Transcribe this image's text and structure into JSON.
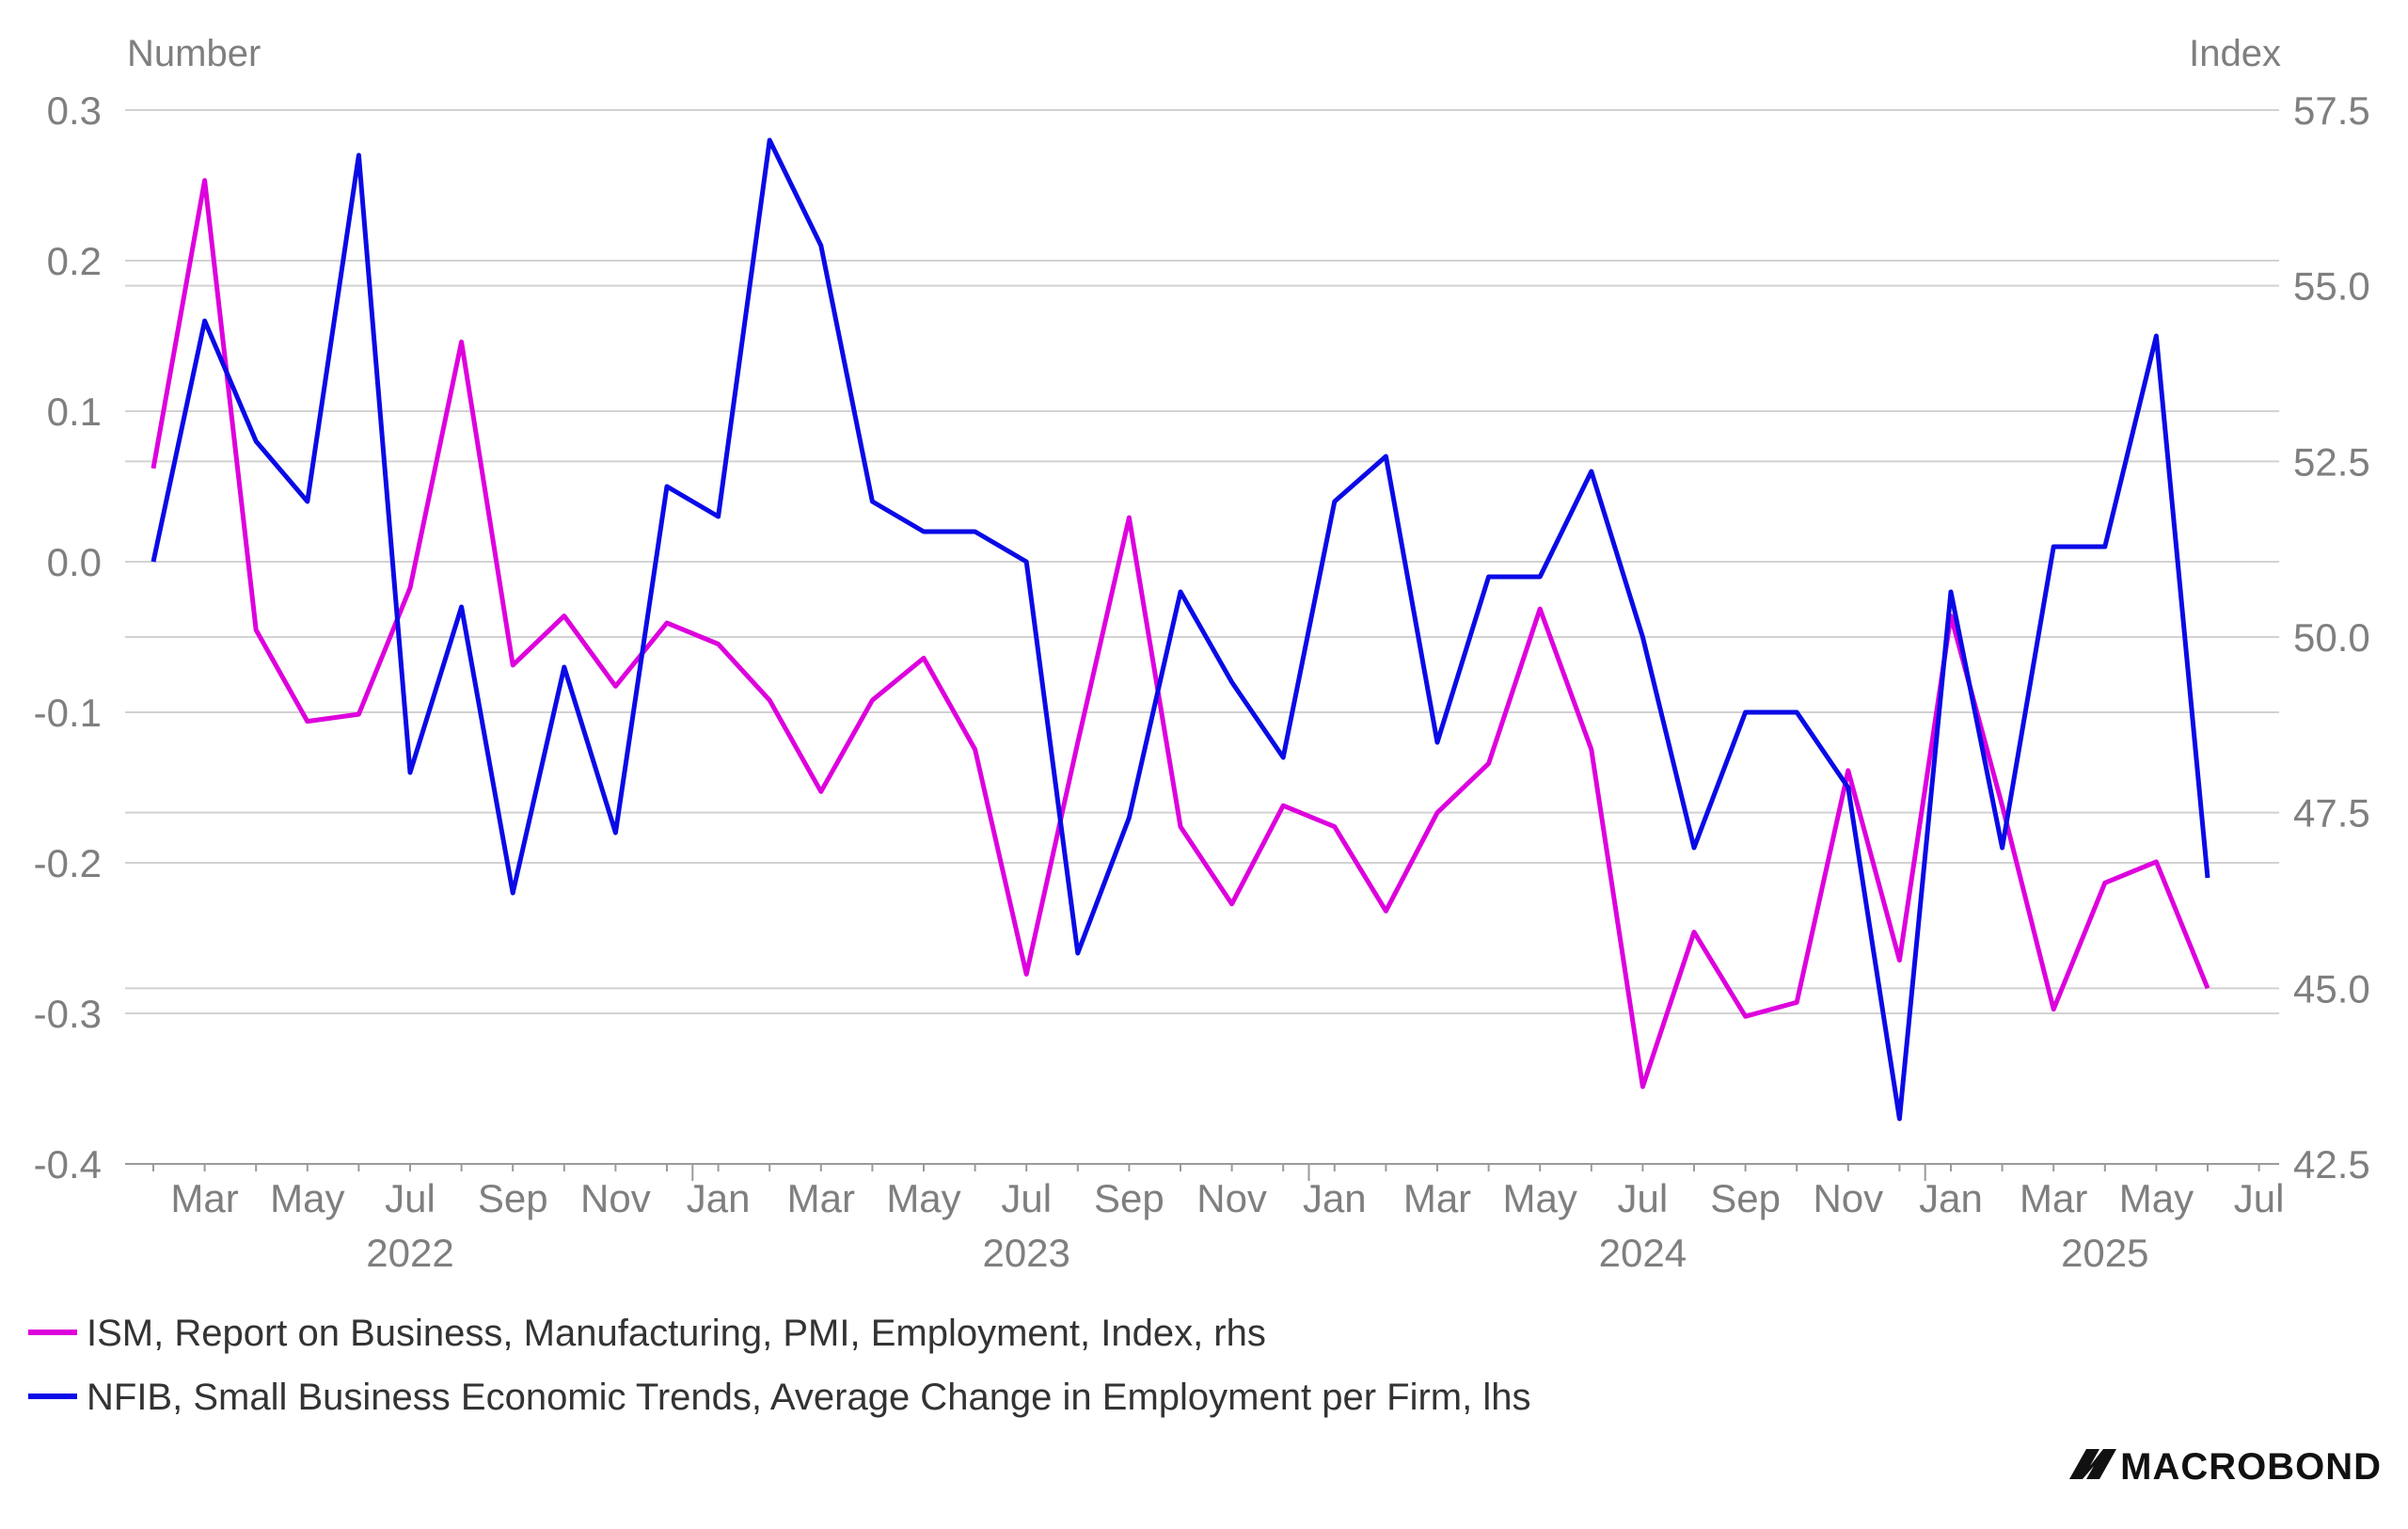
{
  "chart_data": {
    "type": "line",
    "left_axis_title": "Number",
    "right_axis_title": "Index",
    "left_axis": {
      "min": -0.4,
      "max": 0.3,
      "ticks": [
        "0.3",
        "0.2",
        "0.1",
        "0.0",
        "-0.1",
        "-0.2",
        "-0.3",
        "-0.4"
      ],
      "tick_values": [
        0.3,
        0.2,
        0.1,
        0.0,
        -0.1,
        -0.2,
        -0.3,
        -0.4
      ]
    },
    "right_axis": {
      "min": 42.5,
      "max": 57.5,
      "ticks": [
        "57.5",
        "55.0",
        "52.5",
        "50.0",
        "47.5",
        "45.0",
        "42.5"
      ],
      "tick_values": [
        57.5,
        55.0,
        52.5,
        50.0,
        47.5,
        45.0,
        42.5
      ]
    },
    "x": [
      "2022-02",
      "2022-03",
      "2022-04",
      "2022-05",
      "2022-06",
      "2022-07",
      "2022-08",
      "2022-09",
      "2022-10",
      "2022-11",
      "2022-12",
      "2023-01",
      "2023-02",
      "2023-03",
      "2023-04",
      "2023-05",
      "2023-06",
      "2023-07",
      "2023-08",
      "2023-09",
      "2023-10",
      "2023-11",
      "2023-12",
      "2024-01",
      "2024-02",
      "2024-03",
      "2024-04",
      "2024-05",
      "2024-06",
      "2024-07",
      "2024-08",
      "2024-09",
      "2024-10",
      "2024-11",
      "2024-12",
      "2025-01",
      "2025-02",
      "2025-03",
      "2025-04",
      "2025-05",
      "2025-06"
    ],
    "x_ticks": [
      {
        "label": "Mar",
        "at": "2022-03"
      },
      {
        "label": "May",
        "at": "2022-05"
      },
      {
        "label": "Jul",
        "at": "2022-07"
      },
      {
        "label": "Sep",
        "at": "2022-09"
      },
      {
        "label": "Nov",
        "at": "2022-11"
      },
      {
        "label": "Jan",
        "at": "2023-01"
      },
      {
        "label": "Mar",
        "at": "2023-03"
      },
      {
        "label": "May",
        "at": "2023-05"
      },
      {
        "label": "Jul",
        "at": "2023-07"
      },
      {
        "label": "Sep",
        "at": "2023-09"
      },
      {
        "label": "Nov",
        "at": "2023-11"
      },
      {
        "label": "Jan",
        "at": "2024-01"
      },
      {
        "label": "Mar",
        "at": "2024-03"
      },
      {
        "label": "May",
        "at": "2024-05"
      },
      {
        "label": "Jul",
        "at": "2024-07"
      },
      {
        "label": "Sep",
        "at": "2024-09"
      },
      {
        "label": "Nov",
        "at": "2024-11"
      },
      {
        "label": "Jan",
        "at": "2025-01"
      },
      {
        "label": "Mar",
        "at": "2025-03"
      },
      {
        "label": "May",
        "at": "2025-05"
      },
      {
        "label": "Jul",
        "at": "2025-07"
      }
    ],
    "years": [
      {
        "label": "2022",
        "at": "2022-07"
      },
      {
        "label": "2023",
        "at": "2023-07"
      },
      {
        "label": "2024",
        "at": "2024-07"
      },
      {
        "label": "2025",
        "at": "2025-04"
      }
    ],
    "series": [
      {
        "name": "ISM, Report on Business, Manufacturing, PMI, Employment, Index, rhs",
        "axis": "right",
        "color": "#dd00dd",
        "values": [
          52.4,
          56.5,
          50.1,
          48.8,
          48.9,
          50.7,
          54.2,
          49.6,
          50.3,
          49.3,
          50.2,
          49.9,
          49.1,
          47.8,
          49.1,
          49.7,
          48.4,
          45.2,
          48.5,
          51.7,
          47.3,
          46.2,
          47.6,
          47.3,
          46.1,
          47.5,
          48.2,
          50.4,
          48.4,
          43.6,
          45.8,
          44.6,
          44.8,
          48.1,
          45.4,
          50.3,
          47.6,
          44.7,
          46.5,
          46.8,
          45.0
        ]
      },
      {
        "name": "NFIB, Small Business Economic Trends, Average Change in Employment per Firm, lhs",
        "axis": "left",
        "color": "#0a0ae6",
        "values": [
          0.0,
          0.16,
          0.08,
          0.04,
          0.27,
          -0.14,
          -0.03,
          -0.22,
          -0.07,
          -0.18,
          0.05,
          0.03,
          0.28,
          0.21,
          0.04,
          0.02,
          0.02,
          0.0,
          -0.26,
          -0.17,
          -0.02,
          -0.08,
          -0.13,
          0.04,
          0.07,
          -0.12,
          -0.01,
          -0.01,
          0.06,
          -0.05,
          -0.19,
          -0.1,
          -0.1,
          -0.15,
          -0.37,
          -0.02,
          -0.19,
          0.01,
          0.01,
          0.15,
          -0.21
        ]
      }
    ]
  },
  "brand": "MACROBOND"
}
